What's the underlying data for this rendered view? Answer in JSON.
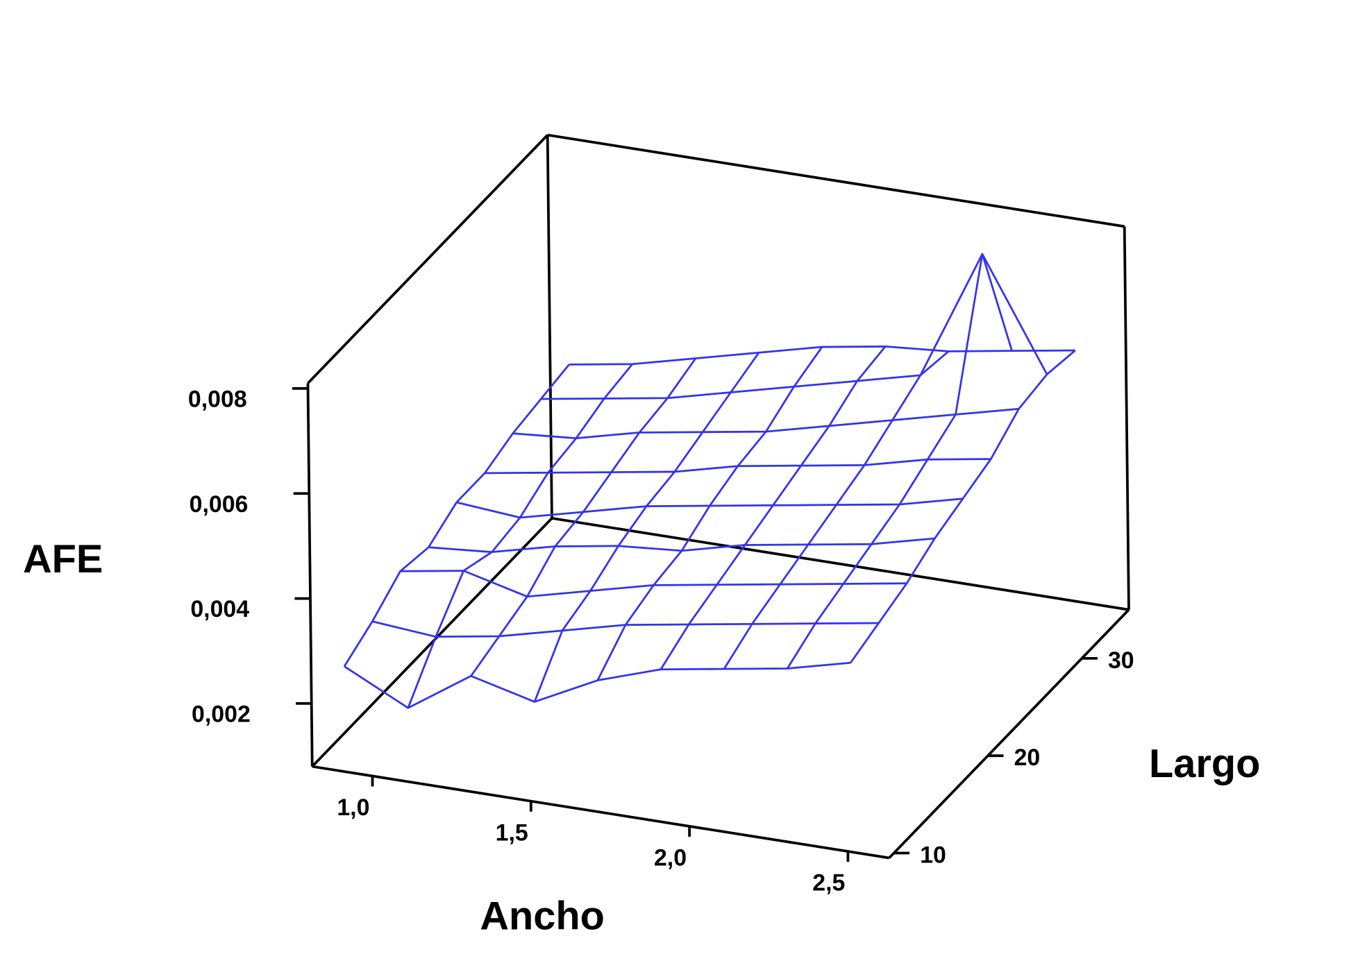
{
  "chart_data": {
    "type": "surface",
    "x_label": "Ancho",
    "y_label": "Largo",
    "z_label": "AFE",
    "color": "#3333ee",
    "x": [
      0.9,
      1.1,
      1.3,
      1.5,
      1.7,
      1.9,
      2.1,
      2.3,
      2.5
    ],
    "y": [
      10,
      13,
      16,
      19,
      22,
      25,
      28,
      31,
      34
    ],
    "z": [
      [
        0.0027,
        0.0021,
        0.0029,
        0.0026,
        0.0032,
        0.0036,
        0.0038,
        0.004,
        0.0043
      ],
      [
        0.003,
        0.0029,
        0.0031,
        0.0034,
        0.0037,
        0.0039,
        0.0041,
        0.0043,
        0.0045
      ],
      [
        0.0034,
        0.0036,
        0.0033,
        0.0036,
        0.0039,
        0.0041,
        0.0043,
        0.0045,
        0.0047
      ],
      [
        0.0033,
        0.0034,
        0.0037,
        0.0039,
        0.004,
        0.0043,
        0.0045,
        0.0047,
        0.005
      ],
      [
        0.0036,
        0.0035,
        0.0038,
        0.0041,
        0.0043,
        0.0045,
        0.0047,
        0.0049,
        0.0052
      ],
      [
        0.0036,
        0.0038,
        0.004,
        0.0042,
        0.0045,
        0.0047,
        0.0049,
        0.0052,
        0.0054
      ],
      [
        0.0038,
        0.0039,
        0.0042,
        0.0044,
        0.0046,
        0.0049,
        0.0052,
        0.0055,
        0.0058
      ],
      [
        0.0039,
        0.0041,
        0.0043,
        0.0046,
        0.0049,
        0.0052,
        0.0055,
        0.008,
        0.0059
      ],
      [
        0.004,
        0.0042,
        0.0045,
        0.0048,
        0.0051,
        0.0053,
        0.0054,
        0.0056,
        0.0058
      ]
    ],
    "xlim": [
      0.81,
      2.63
    ],
    "ylim": [
      9.5,
      35
    ],
    "zlim": [
      0.0008,
      0.0081
    ],
    "xticks": [
      {
        "value": 1.0,
        "label": "1,0"
      },
      {
        "value": 1.5,
        "label": "1,5"
      },
      {
        "value": 2.0,
        "label": "2,0"
      },
      {
        "value": 2.5,
        "label": "2,5"
      }
    ],
    "yticks": [
      10,
      20,
      30
    ],
    "zticks": [
      {
        "value": 0.002,
        "label": "0,002"
      },
      {
        "value": 0.004,
        "label": "0,004"
      },
      {
        "value": 0.006,
        "label": "0,006"
      },
      {
        "value": 0.008,
        "label": "0,008"
      }
    ]
  }
}
